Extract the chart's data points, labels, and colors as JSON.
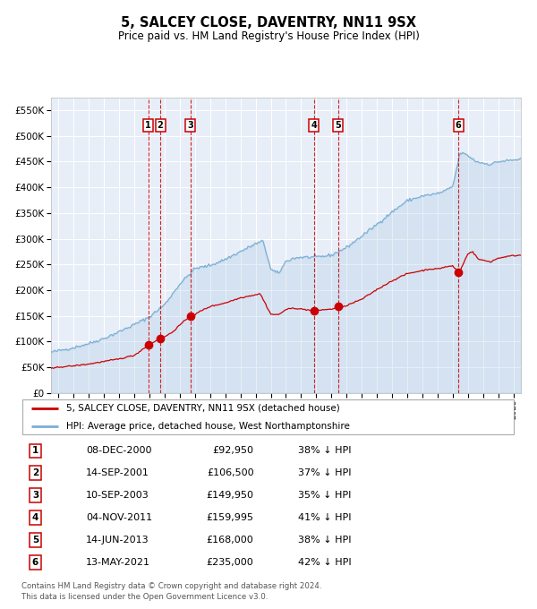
{
  "title": "5, SALCEY CLOSE, DAVENTRY, NN11 9SX",
  "subtitle": "Price paid vs. HM Land Registry's House Price Index (HPI)",
  "legend_red": "5, SALCEY CLOSE, DAVENTRY, NN11 9SX (detached house)",
  "legend_blue": "HPI: Average price, detached house, West Northamptonshire",
  "footnote1": "Contains HM Land Registry data © Crown copyright and database right 2024.",
  "footnote2": "This data is licensed under the Open Government Licence v3.0.",
  "table_dates": [
    "08-DEC-2000",
    "14-SEP-2001",
    "10-SEP-2003",
    "04-NOV-2011",
    "14-JUN-2013",
    "13-MAY-2021"
  ],
  "table_prices": [
    "£92,950",
    "£106,500",
    "£149,950",
    "£159,995",
    "£168,000",
    "£235,000"
  ],
  "table_pcts": [
    "38% ↓ HPI",
    "37% ↓ HPI",
    "35% ↓ HPI",
    "41% ↓ HPI",
    "38% ↓ HPI",
    "42% ↓ HPI"
  ],
  "sale_labels": [
    "1",
    "2",
    "3",
    "4",
    "5",
    "6"
  ],
  "sale_years": [
    2000.92,
    2001.71,
    2003.71,
    2011.84,
    2013.45,
    2021.37
  ],
  "sale_prices": [
    92950,
    106500,
    149950,
    159995,
    168000,
    235000
  ],
  "bg_color": "#e8eef8",
  "red_color": "#cc0000",
  "blue_color": "#7bafd4",
  "grid_color": "#ffffff",
  "ylim": [
    0,
    575000
  ],
  "yticks": [
    0,
    50000,
    100000,
    150000,
    200000,
    250000,
    300000,
    350000,
    400000,
    450000,
    500000,
    550000
  ],
  "xlim": [
    1994.5,
    2025.5
  ]
}
